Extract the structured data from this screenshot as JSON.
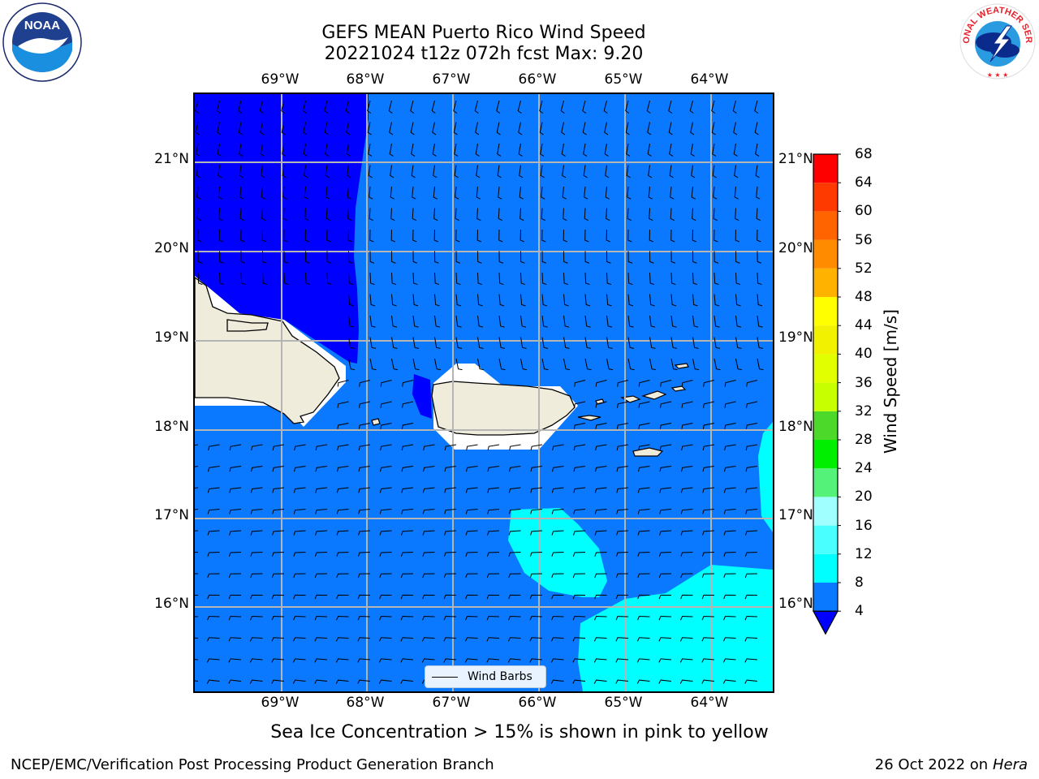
{
  "title": {
    "line1": "GEFS MEAN Puerto Rico Wind Speed",
    "line2": "20221024 t12z 072h fcst   Max: 9.20"
  },
  "logos": {
    "noaa_text": "NOAA",
    "nws_text": "NATIONAL WEATHER SERVICE"
  },
  "map": {
    "lon_labels": [
      "69°W",
      "68°W",
      "67°W",
      "66°W",
      "65°W",
      "64°W"
    ],
    "lat_labels": [
      "21°N",
      "20°N",
      "19°N",
      "18°N",
      "17°N",
      "16°N"
    ],
    "legend_label": "Wind Barbs",
    "field_colors": {
      "band_4_8": "#0a78ff",
      "band_below_4": "#0000ff",
      "band_8_12": "#00ffff",
      "land": "#efecdc"
    }
  },
  "chart_data": {
    "type": "heatmap",
    "title": "GEFS MEAN Puerto Rico Wind Speed",
    "subtitle": "20221024 t12z 072h fcst   Max: 9.20",
    "max_value": 9.2,
    "colorbar": {
      "label": "Wind Speed [m/s]",
      "ticks": [
        "68",
        "64",
        "60",
        "56",
        "52",
        "48",
        "44",
        "40",
        "36",
        "32",
        "28",
        "24",
        "20",
        "16",
        "12",
        "8",
        "4"
      ],
      "levels": [
        4,
        8,
        12,
        16,
        20,
        24,
        28,
        32,
        36,
        40,
        44,
        48,
        52,
        56,
        60,
        64,
        68
      ],
      "colors": [
        "#0a78ff",
        "#00ffff",
        "#49ffff",
        "#a0ffff",
        "#55f27a",
        "#00ee00",
        "#4cd92a",
        "#c8ff00",
        "#e2ff00",
        "#f2f200",
        "#ffff00",
        "#ffb300",
        "#ff8c00",
        "#ff6400",
        "#ff3a00",
        "#ff0000"
      ],
      "under_color": "#0000ff",
      "extend": "min"
    },
    "lon_range": [
      -69.997,
      -63.248
    ],
    "lat_range": [
      15.012,
      21.768
    ]
  },
  "caption": "Sea Ice Concentration > 15% is shown in pink to yellow",
  "footer": {
    "left": "NCEP/EMC/Verification Post Processing Product Generation Branch",
    "date": "26 Oct 2022 on ",
    "machine": "Hera"
  }
}
